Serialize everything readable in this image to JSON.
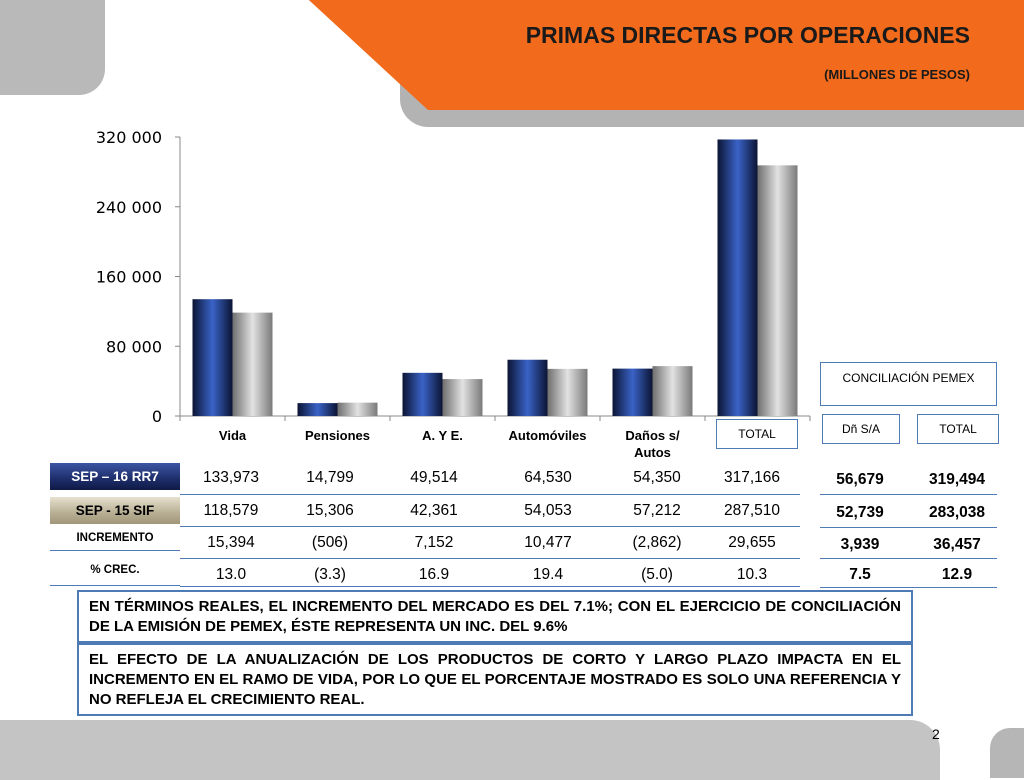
{
  "header": {
    "title": "PRIMAS DIRECTAS POR OPERACIONES",
    "subtitle": "(MILLONES DE PESOS)"
  },
  "colors": {
    "header_orange": "#f26a1b",
    "series_2016": "#1d2d6a",
    "series_2015": "#a9a9a9",
    "grid_border": "#4e7ab5"
  },
  "chart_data": {
    "type": "bar",
    "categories": [
      "Vida",
      "Pensiones",
      "A. Y E.",
      "Automóviles",
      "Daños s/ Autos",
      "TOTAL"
    ],
    "series": [
      {
        "name": "SEP – 16 RR7",
        "values": [
          133973,
          14799,
          49514,
          64530,
          54350,
          317166
        ]
      },
      {
        "name": "SEP -  15 SIF",
        "values": [
          118579,
          15306,
          42361,
          54053,
          57212,
          287510
        ]
      }
    ],
    "yticks": [
      "0",
      "80 000",
      "160 000",
      "240 000",
      "320 000"
    ],
    "ylim": [
      0,
      320000
    ],
    "grid": false
  },
  "category_labels": {
    "vida": "Vida",
    "pensiones": "Pensiones",
    "ay": "A. Y E.",
    "autos": "Automóviles",
    "danos_line1": "Daños s/",
    "danos_line2": "Autos",
    "total": "TOTAL"
  },
  "table": {
    "rows": [
      {
        "label": "SEP – 16 RR7",
        "values": [
          "133,973",
          "14,799",
          "49,514",
          "64,530",
          "54,350",
          "317,166"
        ]
      },
      {
        "label": "SEP -  15 SIF",
        "values": [
          "118,579",
          "15,306",
          "42,361",
          "54,053",
          "57,212",
          "287,510"
        ]
      },
      {
        "label": "INCREMENTO",
        "values": [
          "15,394",
          "(506)",
          "7,152",
          "10,477",
          "(2,862)",
          "29,655"
        ]
      },
      {
        "label": "% CREC.",
        "values": [
          "13.0",
          "(3.3)",
          "16.9",
          "19.4",
          "(5.0)",
          "10.3"
        ]
      }
    ]
  },
  "conciliacion": {
    "title": "CONCILIACIÓN PEMEX",
    "headers": [
      "Dñ S/A",
      "TOTAL"
    ],
    "rows": [
      [
        "56,679",
        "319,494"
      ],
      [
        "52,739",
        "283,038"
      ],
      [
        "3,939",
        "36,457"
      ],
      [
        "7.5",
        "12.9"
      ]
    ]
  },
  "notes": {
    "note1": "EN TÉRMINOS REALES, EL INCREMENTO DEL MERCADO ES DEL 7.1%;  CON EL EJERCICIO DE CONCILIACIÓN DE LA EMISIÓN DE PEMEX, ÉSTE REPRESENTA  UN INC. DEL 9.6%",
    "note2": "EL EFECTO DE LA ANUALIZACIÓN DE LOS PRODUCTOS DE CORTO Y LARGO PLAZO IMPACTA EN EL INCREMENTO EN EL RAMO DE VIDA, POR LO QUE EL PORCENTAJE MOSTRADO ES SOLO UNA REFERENCIA Y NO REFLEJA EL CRECIMIENTO REAL."
  },
  "footer": {
    "page_number": "2"
  }
}
